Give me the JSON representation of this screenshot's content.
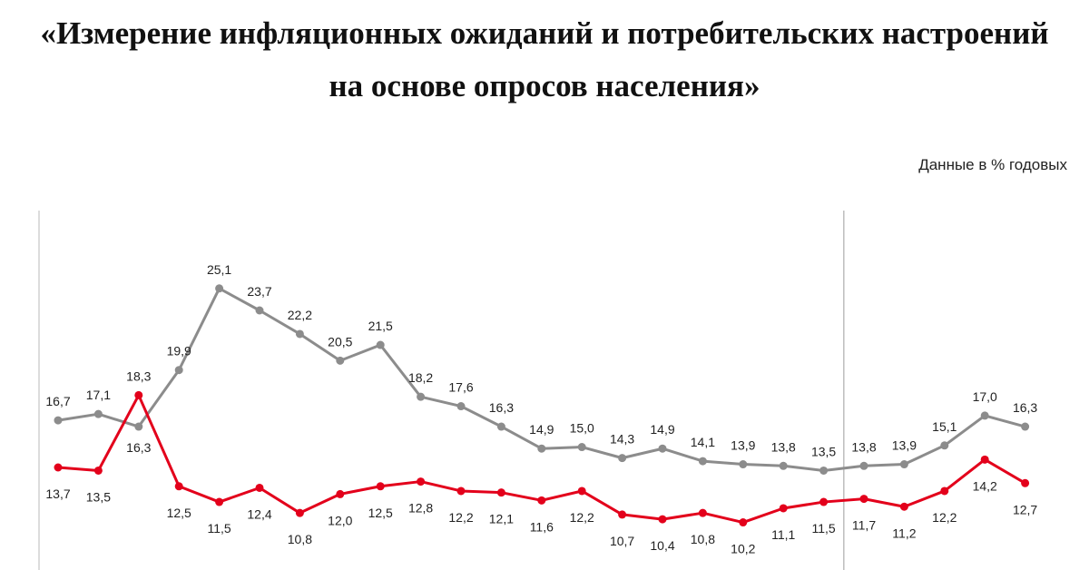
{
  "header": {
    "title_line1": "«Измерение инфляционных ожиданий и потребительских настроений",
    "title_line2": "на основе опросов населения»"
  },
  "chart_data": {
    "type": "line",
    "units_label": "Данные в % годовых",
    "grid": false,
    "separators_after_index": [
      19,
      38
    ],
    "series": [
      {
        "color": "#8c8c8c",
        "values": [
          16.7,
          17.1,
          16.3,
          19.9,
          25.1,
          23.7,
          22.2,
          20.5,
          21.5,
          18.2,
          17.6,
          16.3,
          14.9,
          15.0,
          14.3,
          14.9,
          14.1,
          13.9,
          13.8,
          13.5,
          13.8,
          13.9,
          15.1,
          17.0,
          16.3
        ],
        "labels": [
          "16,7",
          "17,1",
          "16,3",
          "19,9",
          "25,1",
          "23,7",
          "22,2",
          "20,5",
          "21,5",
          "18,2",
          "17,6",
          "16,3",
          "14,9",
          "15,0",
          "14,3",
          "14,9",
          "14,1",
          "13,9",
          "13,8",
          "13,5",
          "13,8",
          "13,9",
          "15,1",
          "17,0",
          "16,3"
        ]
      },
      {
        "color": "#e3001b",
        "values": [
          13.7,
          13.5,
          18.3,
          12.5,
          11.5,
          12.4,
          10.8,
          12.0,
          12.5,
          12.8,
          12.2,
          12.1,
          11.6,
          12.2,
          10.7,
          10.4,
          10.8,
          10.2,
          11.1,
          11.5,
          11.7,
          11.2,
          12.2,
          14.2,
          12.7
        ],
        "labels": [
          "13,7",
          "13,5",
          "18,3",
          "12,5",
          "11,5",
          "12,4",
          "10,8",
          "12,0",
          "12,5",
          "12,8",
          "12,2",
          "12,1",
          "11,6",
          "12,2",
          "10,7",
          "10,4",
          "10,8",
          "10,2",
          "11,1",
          "11,5",
          "11,7",
          "11,2",
          "12,2",
          "14,2",
          "12,7"
        ]
      }
    ]
  }
}
